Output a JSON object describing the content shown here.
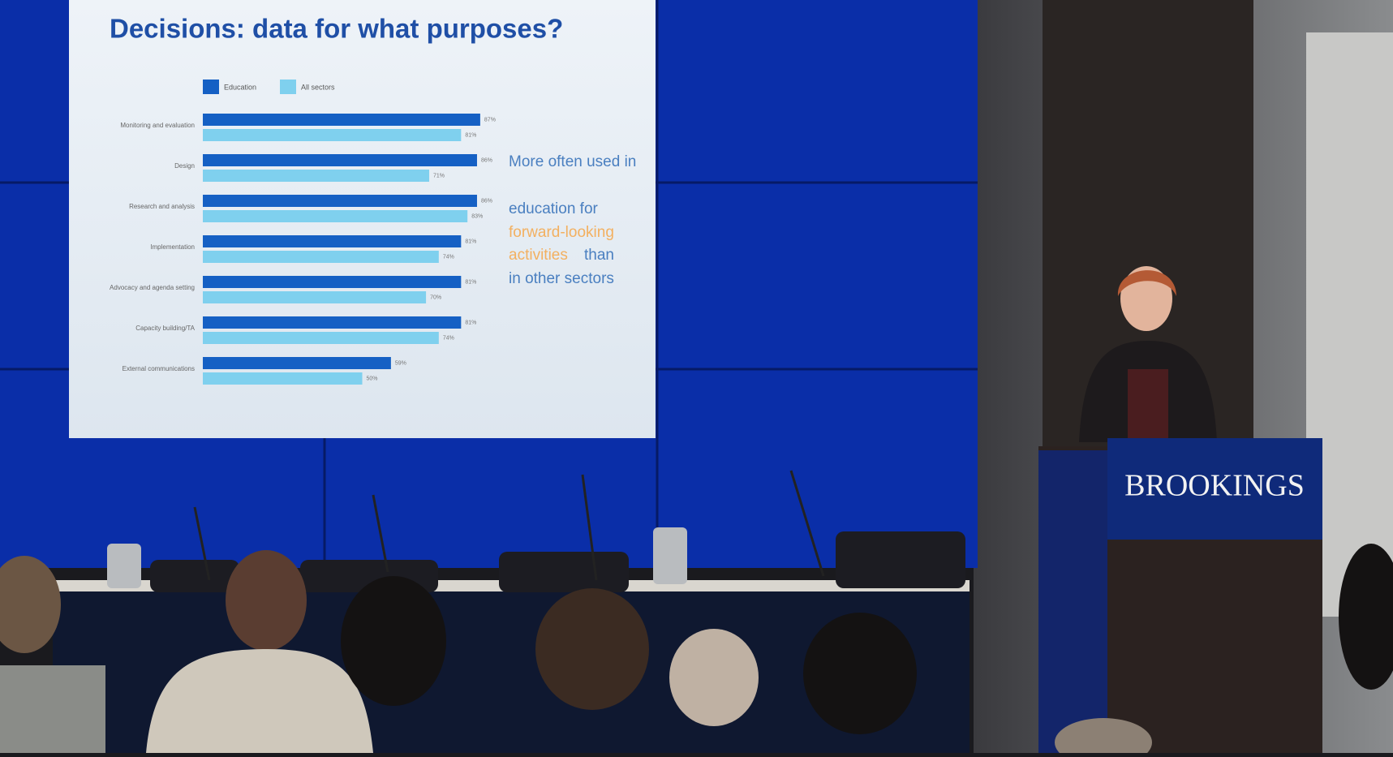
{
  "chart_data": {
    "type": "bar",
    "orientation": "horizontal",
    "title": "Decisions: data for what purposes?",
    "categories": [
      "Monitoring and evaluation",
      "Design",
      "Research and analysis",
      "Implementation",
      "Advocacy and agenda setting",
      "Capacity building/TA",
      "External communications"
    ],
    "series": [
      {
        "name": "Education",
        "color": "#1560c4",
        "values": [
          87,
          86,
          86,
          81,
          81,
          81,
          59
        ],
        "value_labels": [
          "87%",
          "86%",
          "86%",
          "81%",
          "81%",
          "81%",
          "59%"
        ]
      },
      {
        "name": "All sectors",
        "color": "#7fd0ee",
        "values": [
          81,
          71,
          83,
          74,
          70,
          74,
          50
        ],
        "value_labels": [
          "81%",
          "71%",
          "83%",
          "74%",
          "70%",
          "74%",
          "50%"
        ]
      }
    ],
    "xlim": [
      0,
      100
    ],
    "annotation": [
      "More often used in",
      "education for",
      "forward-looking",
      "activities",
      "than",
      "in other sectors"
    ]
  },
  "podium": {
    "logo": "BROOKINGS"
  }
}
